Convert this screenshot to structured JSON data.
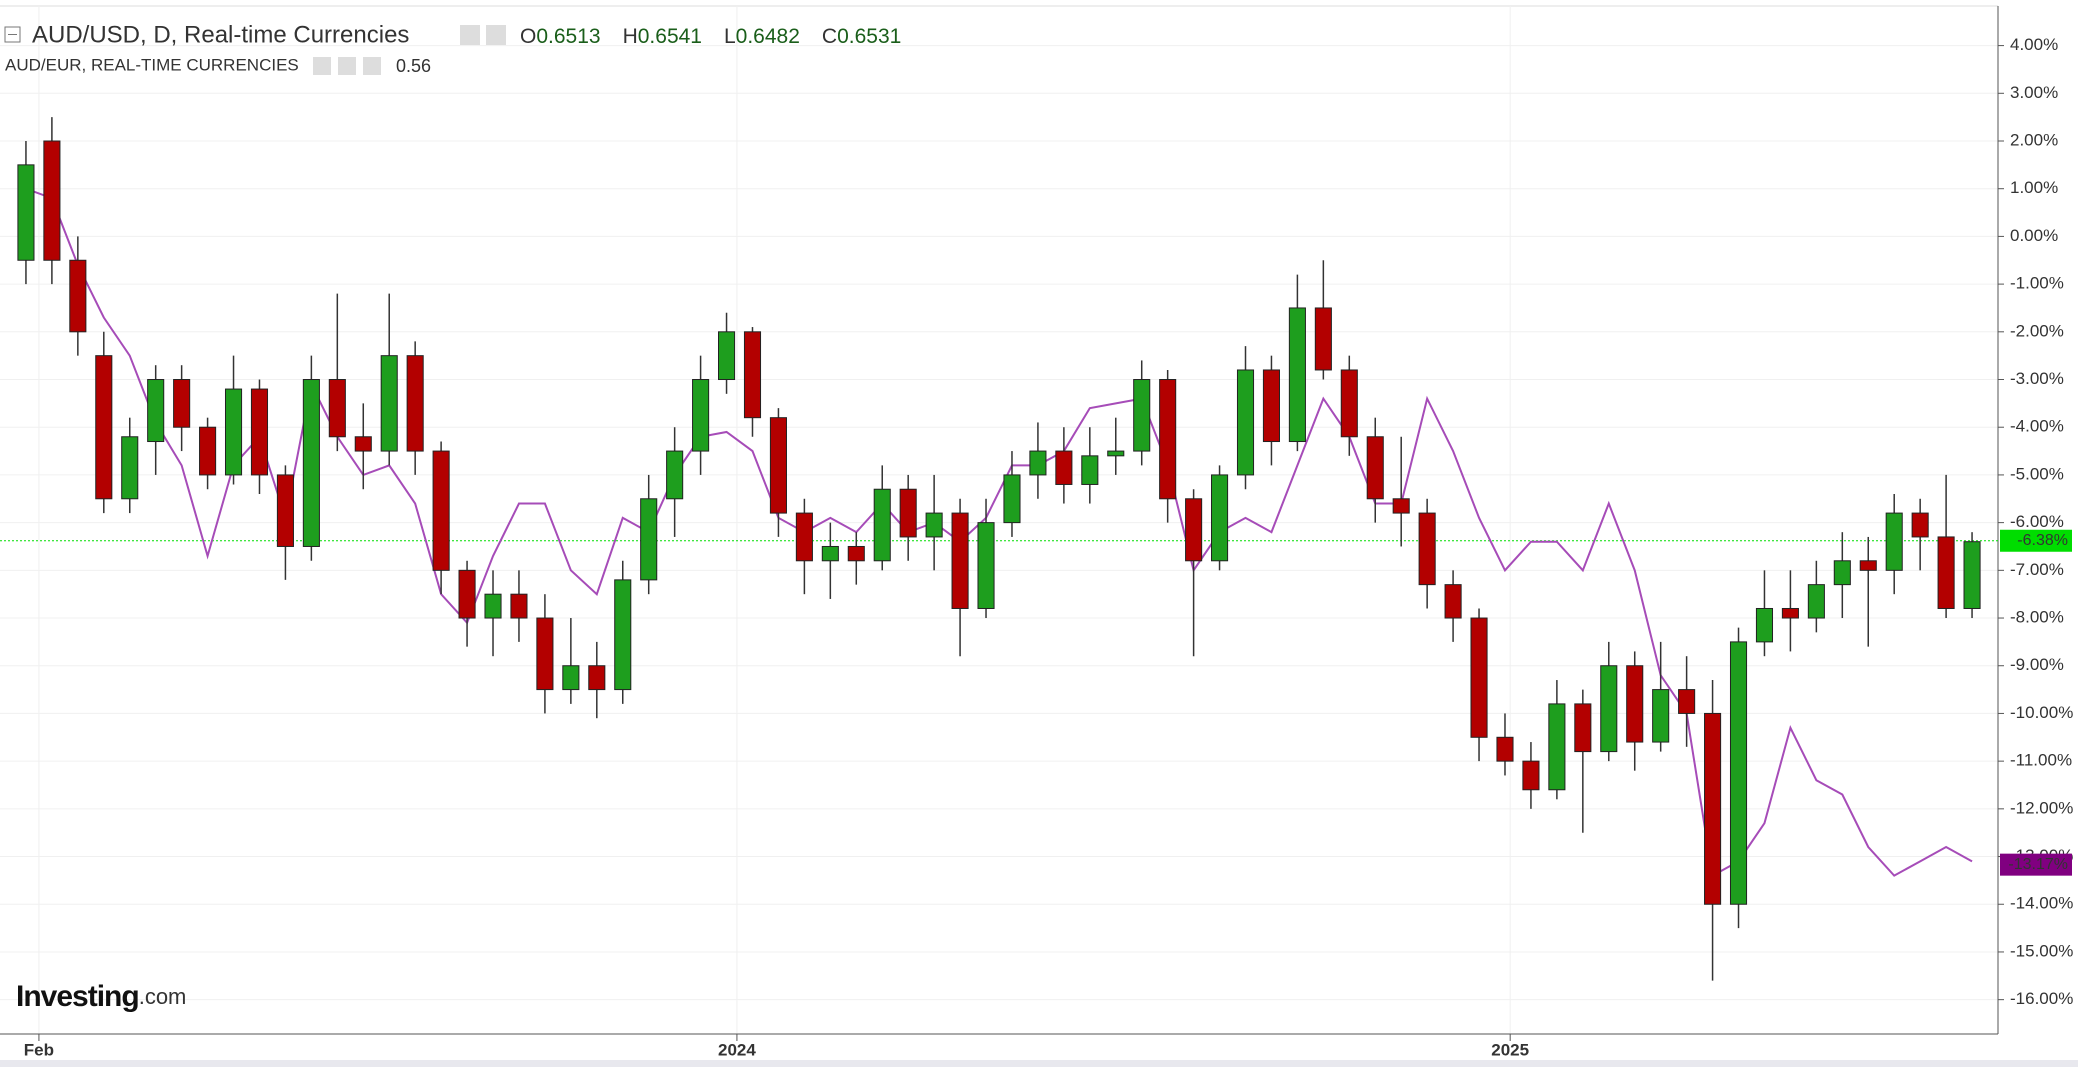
{
  "chart_data": {
    "type": "candlestick",
    "title": "AUD/USD, D, Real-time Currencies",
    "ohlc_labels": [
      {
        "label": "O",
        "value": 0.6513
      },
      {
        "label": "H",
        "value": 0.6541
      },
      {
        "label": "L",
        "value": 0.6482
      },
      {
        "label": "C",
        "value": 0.6531
      }
    ],
    "x": [
      0,
      1,
      2,
      3,
      4,
      5,
      6,
      7,
      8,
      9,
      10,
      11,
      12,
      13,
      14,
      15,
      16,
      17,
      18,
      19,
      20,
      21,
      22,
      23,
      24,
      25,
      26,
      27,
      28,
      29,
      30,
      31,
      32,
      33,
      34,
      35,
      36,
      37,
      38,
      39,
      40,
      41,
      42,
      43,
      44,
      45,
      46,
      47,
      48,
      49,
      50,
      51,
      52,
      53,
      54,
      55,
      56,
      57,
      58,
      59,
      60,
      61,
      62,
      63,
      64,
      65,
      66,
      67,
      68,
      69,
      70,
      71,
      72,
      73,
      74,
      75
    ],
    "open": [
      -0.5,
      2.0,
      -0.5,
      -2.5,
      -5.5,
      -4.3,
      -3.0,
      -4.0,
      -5.0,
      -3.2,
      -5.0,
      -6.5,
      -3.0,
      -4.2,
      -4.5,
      -2.5,
      -4.5,
      -7.0,
      -8.0,
      -7.5,
      -8.0,
      -9.5,
      -9.0,
      -9.5,
      -7.2,
      -5.5,
      -4.5,
      -3.0,
      -2.0,
      -3.8,
      -5.8,
      -6.8,
      -6.5,
      -6.8,
      -5.3,
      -6.3,
      -5.8,
      -7.8,
      -6.0,
      -5.0,
      -4.5,
      -5.2,
      -4.6,
      -4.5,
      -3.0,
      -5.5,
      -6.8,
      -5.0,
      -2.8,
      -4.3,
      -1.5,
      -2.8,
      -4.2,
      -5.5,
      -5.8,
      -7.3,
      -8.0,
      -10.5,
      -11.0,
      -11.6,
      -9.8,
      -10.8,
      -9.0,
      -10.6,
      -9.5,
      -10.0,
      -14.0,
      -8.5,
      -7.8,
      -8.0,
      -7.3,
      -6.8,
      -7.0,
      -5.8,
      -6.3,
      -7.8
    ],
    "high": [
      2.0,
      2.5,
      0.0,
      -2.0,
      -3.8,
      -2.7,
      -2.7,
      -3.8,
      -2.5,
      -3.0,
      -4.8,
      -2.5,
      -1.2,
      -3.5,
      -1.2,
      -2.2,
      -4.3,
      -6.8,
      -7.0,
      -7.0,
      -7.5,
      -8.0,
      -8.5,
      -6.8,
      -5.0,
      -4.0,
      -2.5,
      -1.6,
      -1.9,
      -3.6,
      -5.5,
      -6.0,
      -6.2,
      -4.8,
      -5.0,
      -5.0,
      -5.5,
      -5.5,
      -4.5,
      -3.9,
      -4.0,
      -4.0,
      -3.8,
      -2.6,
      -2.8,
      -5.3,
      -4.8,
      -2.3,
      -2.5,
      -0.8,
      -0.5,
      -2.5,
      -3.8,
      -4.2,
      -5.5,
      -7.0,
      -7.8,
      -10.0,
      -10.6,
      -9.3,
      -9.5,
      -8.5,
      -8.7,
      -8.5,
      -8.8,
      -9.3,
      -8.2,
      -7.0,
      -7.0,
      -6.8,
      -6.2,
      -6.3,
      -5.4,
      -5.5,
      -5.0,
      -6.2
    ],
    "low": [
      -1.0,
      -1.0,
      -2.5,
      -5.8,
      -5.8,
      -5.0,
      -4.5,
      -5.3,
      -5.2,
      -5.4,
      -7.2,
      -6.8,
      -4.5,
      -5.3,
      -4.8,
      -5.0,
      -7.5,
      -8.6,
      -8.8,
      -8.5,
      -10.0,
      -9.8,
      -10.1,
      -9.8,
      -7.5,
      -6.3,
      -5.0,
      -3.3,
      -4.2,
      -6.3,
      -7.5,
      -7.6,
      -7.3,
      -7.0,
      -6.8,
      -7.0,
      -8.8,
      -8.0,
      -6.3,
      -5.5,
      -5.6,
      -5.6,
      -5.0,
      -4.8,
      -6.0,
      -8.8,
      -7.0,
      -5.3,
      -4.8,
      -4.5,
      -3.0,
      -4.6,
      -6.0,
      -6.5,
      -7.8,
      -8.5,
      -11.0,
      -11.3,
      -12.0,
      -11.8,
      -12.5,
      -11.0,
      -11.2,
      -10.8,
      -10.7,
      -15.6,
      -14.5,
      -8.8,
      -8.7,
      -8.3,
      -8.0,
      -8.6,
      -7.5,
      -7.0,
      -8.0,
      -8.0
    ],
    "close": [
      1.5,
      -0.5,
      -2.0,
      -5.5,
      -4.2,
      -3.0,
      -4.0,
      -5.0,
      -3.2,
      -5.0,
      -6.5,
      -3.0,
      -4.2,
      -4.5,
      -2.5,
      -4.5,
      -7.0,
      -8.0,
      -7.5,
      -8.0,
      -9.5,
      -9.0,
      -9.5,
      -7.2,
      -5.5,
      -4.5,
      -3.0,
      -2.0,
      -3.8,
      -5.8,
      -6.8,
      -6.5,
      -6.8,
      -5.3,
      -6.3,
      -5.8,
      -7.8,
      -6.0,
      -5.0,
      -4.5,
      -5.2,
      -4.6,
      -4.5,
      -3.0,
      -5.5,
      -6.8,
      -5.0,
      -2.8,
      -4.3,
      -1.5,
      -2.8,
      -4.2,
      -5.5,
      -5.8,
      -7.3,
      -8.0,
      -10.5,
      -11.0,
      -11.6,
      -9.8,
      -10.8,
      -9.0,
      -10.6,
      -9.5,
      -10.0,
      -14.0,
      -8.5,
      -7.8,
      -8.0,
      -7.3,
      -6.8,
      -7.0,
      -5.8,
      -6.3,
      -7.8,
      -6.4
    ],
    "up_color": "#1e9e1e",
    "down_color": "#b30000",
    "overlay": {
      "type": "line",
      "name": "AUD/EUR, REAL-TIME CURRENCIES",
      "value": 0.56,
      "color": "#a64cb8",
      "values": [
        1.0,
        0.8,
        -0.6,
        -1.7,
        -2.5,
        -3.9,
        -4.8,
        -6.7,
        -4.8,
        -4.2,
        -5.9,
        -3.1,
        -4.2,
        -5.0,
        -4.8,
        -5.6,
        -7.5,
        -8.1,
        -6.7,
        -5.6,
        -5.6,
        -7.0,
        -7.5,
        -5.9,
        -6.2,
        -5.0,
        -4.2,
        -4.1,
        -4.5,
        -5.9,
        -6.2,
        -5.9,
        -6.2,
        -5.6,
        -6.2,
        -6.0,
        -6.4,
        -5.9,
        -4.8,
        -4.8,
        -4.5,
        -3.6,
        -3.5,
        -3.4,
        -4.8,
        -7.0,
        -6.2,
        -5.9,
        -6.2,
        -4.8,
        -3.4,
        -4.2,
        -5.6,
        -5.6,
        -3.4,
        -4.5,
        -5.9,
        -7.0,
        -6.4,
        -6.4,
        -7.0,
        -5.6,
        -7.0,
        -9.2,
        -10.0,
        -13.4,
        -13.1,
        -12.3,
        -10.3,
        -11.4,
        -11.7,
        -12.8,
        -13.4,
        -13.1,
        -12.8,
        -13.1
      ]
    },
    "last_price": {
      "value": -6.38,
      "label": "-6.38%",
      "color": "#00dd00"
    },
    "overlay_last": {
      "value": -13.17,
      "label": "-13.17%",
      "color": "#800080"
    },
    "xlim": [
      -1,
      76
    ],
    "xticks": [
      {
        "value": 0.5,
        "label": "Feb"
      },
      {
        "value": 27.4,
        "label": "2024"
      },
      {
        "value": 57.2,
        "label": "2025"
      }
    ],
    "ylim": [
      -16.72,
      4.83
    ],
    "yticks": [
      {
        "value": 4,
        "label": "4.00%"
      },
      {
        "value": 3,
        "label": "3.00%"
      },
      {
        "value": 2,
        "label": "2.00%"
      },
      {
        "value": 1,
        "label": "1.00%"
      },
      {
        "value": 0,
        "label": "0.00%"
      },
      {
        "value": -1,
        "label": "-1.00%"
      },
      {
        "value": -2,
        "label": "-2.00%"
      },
      {
        "value": -3,
        "label": "-3.00%"
      },
      {
        "value": -4,
        "label": "-4.00%"
      },
      {
        "value": -5,
        "label": "-5.00%"
      },
      {
        "value": -6,
        "label": "-6.00%"
      },
      {
        "value": -7,
        "label": "-7.00%"
      },
      {
        "value": -8,
        "label": "-8.00%"
      },
      {
        "value": -9,
        "label": "-9.00%"
      },
      {
        "value": -10,
        "label": "-10.00%"
      },
      {
        "value": -11,
        "label": "-11.00%"
      },
      {
        "value": -12,
        "label": "-12.00%"
      },
      {
        "value": -13,
        "label": "-13.00%"
      },
      {
        "value": -14,
        "label": "-14.00%"
      },
      {
        "value": -15,
        "label": "-15.00%"
      },
      {
        "value": -16,
        "label": "-16.00%"
      }
    ],
    "grid": true,
    "logo": {
      "brand": "Investing",
      "suffix": ".com"
    }
  }
}
